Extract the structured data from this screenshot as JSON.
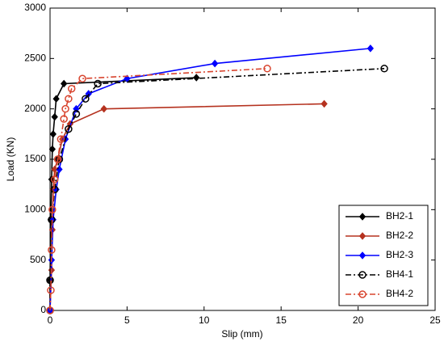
{
  "chart_data": {
    "type": "line",
    "xlabel": "Slip (mm)",
    "ylabel": "Load (KN)",
    "xlim": [
      0,
      25
    ],
    "xticks": [
      0,
      5,
      10,
      15,
      20,
      25
    ],
    "ylim": [
      0,
      3000
    ],
    "yticks": [
      0,
      500,
      1000,
      1500,
      2000,
      2500,
      3000
    ],
    "grid": false,
    "legend": "lower right",
    "series": [
      {
        "name": "BH2-1",
        "color": "#000000",
        "marker": "diamond",
        "linestyle": "solid",
        "x": [
          0,
          0,
          0.05,
          0.1,
          0.15,
          0.2,
          0.3,
          0.4,
          0.9,
          9.5
        ],
        "values": [
          0,
          300,
          900,
          1300,
          1600,
          1750,
          1920,
          2100,
          2250,
          2310
        ]
      },
      {
        "name": "BH2-2",
        "color": "#b5321f",
        "marker": "diamond",
        "linestyle": "solid",
        "x": [
          0,
          0.1,
          0.15,
          0.2,
          0.3,
          0.5,
          0.8,
          1.3,
          3.5,
          17.8
        ],
        "values": [
          0,
          400,
          800,
          1200,
          1400,
          1500,
          1700,
          1850,
          2000,
          2050
        ]
      },
      {
        "name": "BH2-3",
        "color": "#0000ff",
        "marker": "diamond",
        "linestyle": "solid",
        "x": [
          0,
          0.1,
          0.2,
          0.4,
          0.6,
          1.0,
          1.7,
          2.5,
          5,
          10.7,
          20.8
        ],
        "values": [
          0,
          500,
          900,
          1200,
          1400,
          1700,
          2000,
          2150,
          2300,
          2450,
          2600
        ]
      },
      {
        "name": "BH4-1",
        "color": "#000000",
        "marker": "circle",
        "linestyle": "dashdot",
        "x": [
          0,
          0,
          0.1,
          0.3,
          0.6,
          1.2,
          1.7,
          2.3,
          3.1,
          21.7
        ],
        "values": [
          0,
          300,
          900,
          1200,
          1500,
          1800,
          1950,
          2100,
          2250,
          2400
        ]
      },
      {
        "name": "BH4-2",
        "color": "#d8452f",
        "marker": "circle",
        "linestyle": "dashdot",
        "x": [
          0,
          0.05,
          0.1,
          0.15,
          0.3,
          0.5,
          0.7,
          0.9,
          1.0,
          1.2,
          1.4,
          2.1,
          14.1
        ],
        "values": [
          0,
          200,
          600,
          1000,
          1300,
          1500,
          1700,
          1900,
          2000,
          2100,
          2200,
          2300,
          2400
        ]
      }
    ]
  }
}
